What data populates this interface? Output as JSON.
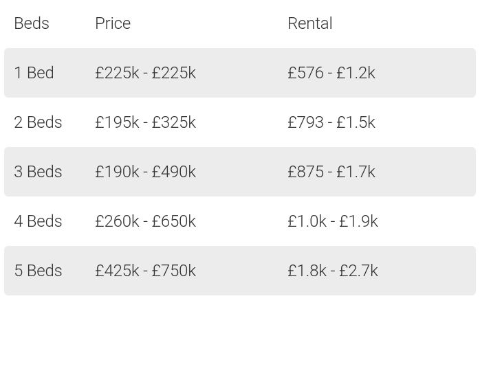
{
  "table": {
    "columns": [
      "Beds",
      "Price",
      "Rental"
    ],
    "rows": [
      {
        "beds": "1 Bed",
        "price": "£225k - £225k",
        "rental": "£576 - £1.2k"
      },
      {
        "beds": "2 Beds",
        "price": "£195k - £325k",
        "rental": "£793 - £1.5k"
      },
      {
        "beds": "3 Beds",
        "price": "£190k - £490k",
        "rental": "£875 - £1.7k"
      },
      {
        "beds": "4 Beds",
        "price": "£260k - £650k",
        "rental": "£1.0k - £1.9k"
      },
      {
        "beds": "5 Beds",
        "price": "£425k - £750k",
        "rental": "£1.8k - £2.7k"
      }
    ],
    "styling": {
      "font_size": 24,
      "font_weight": 300,
      "text_color": "#333333",
      "background_color": "#ffffff",
      "stripe_color": "#ececec",
      "stripe_border_radius": 6,
      "col_widths": {
        "beds": 118,
        "price": 280
      },
      "row_padding_v": 22,
      "row_padding_h": 14
    }
  }
}
